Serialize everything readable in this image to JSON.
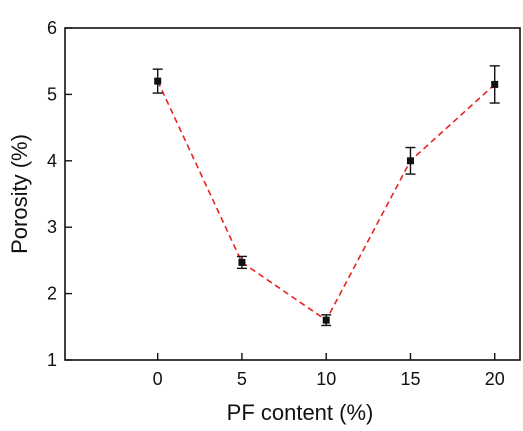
{
  "chart_data": {
    "type": "line",
    "xlabel": "PF content (%)",
    "ylabel": "Porosity (%)",
    "xlim": [
      -5.5,
      21.5
    ],
    "ylim": [
      1,
      6
    ],
    "xticks": [
      0,
      5,
      10,
      15,
      20
    ],
    "yticks": [
      1,
      2,
      3,
      4,
      5,
      6
    ],
    "xtick_labels": [
      "0",
      "5",
      "10",
      "15",
      "20"
    ],
    "ytick_labels": [
      "1",
      "2",
      "3",
      "4",
      "5",
      "6"
    ],
    "grid": false,
    "legend": "none",
    "series": [
      {
        "x": [
          0,
          5,
          10,
          15,
          20
        ],
        "y": [
          5.2,
          2.47,
          1.6,
          4.0,
          5.15
        ],
        "error": [
          0.18,
          0.09,
          0.08,
          0.2,
          0.28
        ],
        "marker": "square",
        "marker_color": "#111111",
        "line_style": "dashed",
        "line_color": "#e8231e"
      }
    ]
  }
}
